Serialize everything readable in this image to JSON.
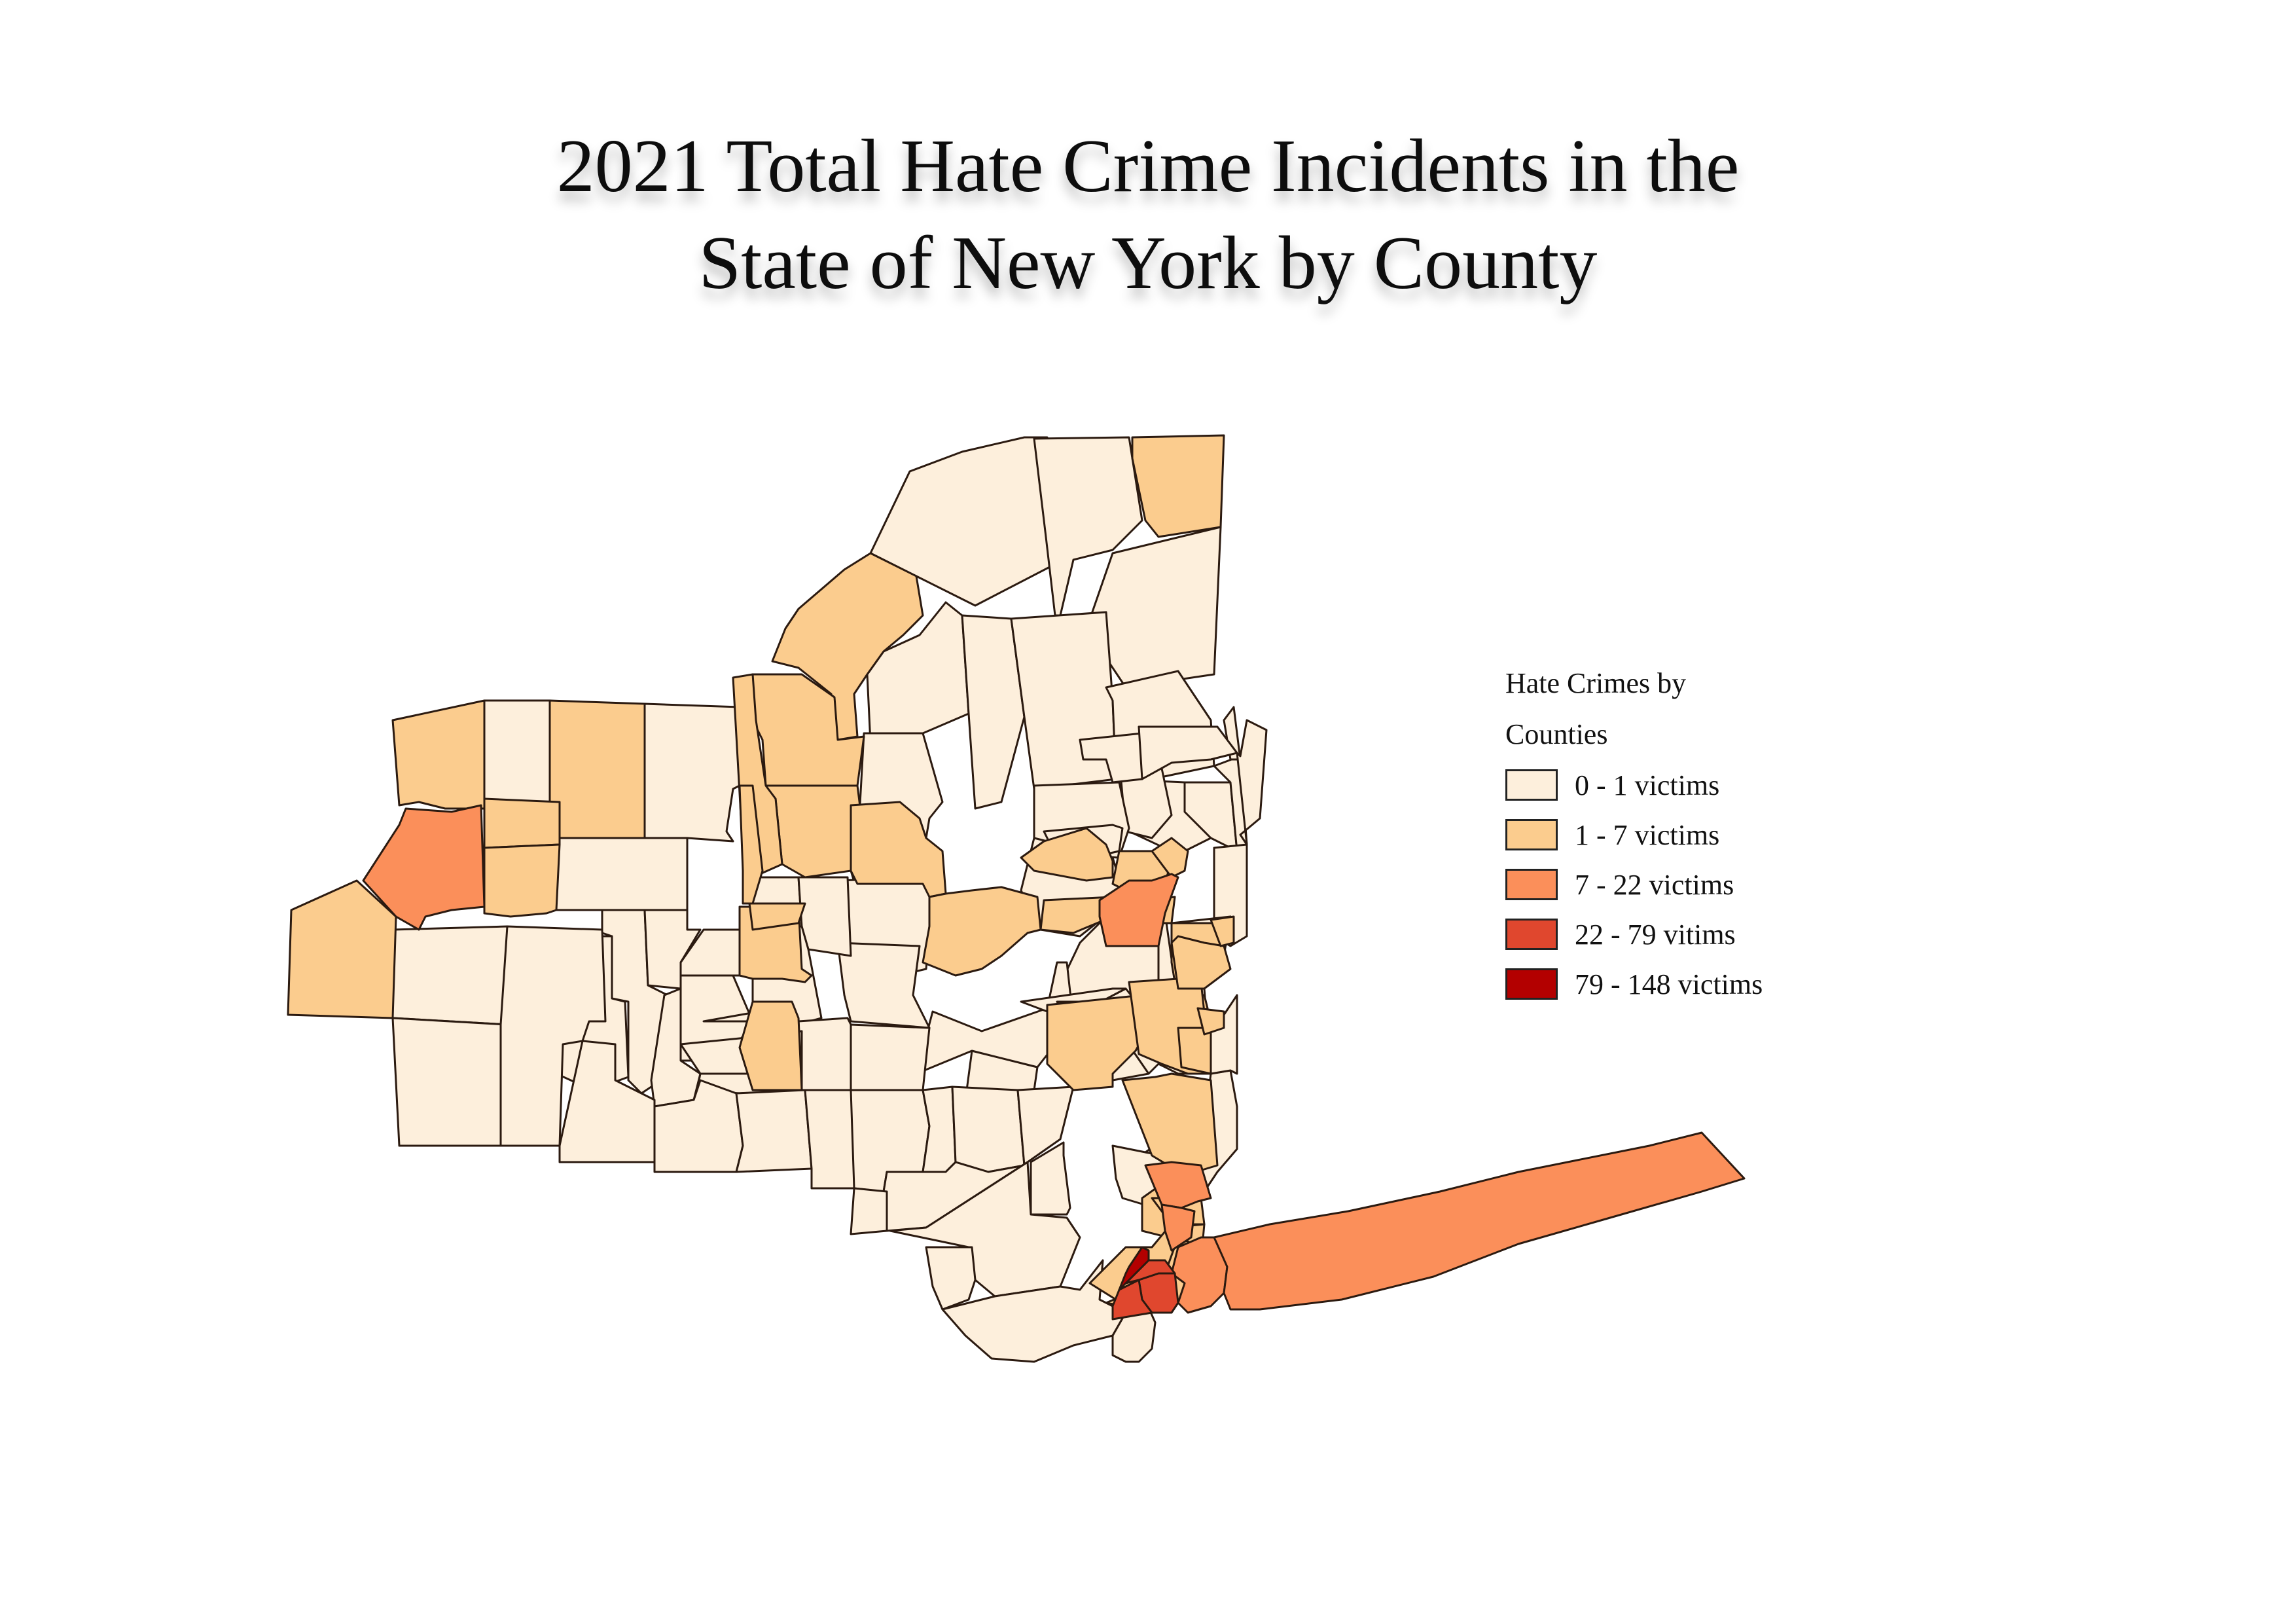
{
  "title": {
    "line1": "2021 Total Hate Crime Incidents in the",
    "line2": "State of New York by County"
  },
  "legend": {
    "title_line1": "Hate Crimes by",
    "title_line2": "Counties",
    "classes": [
      {
        "label": "0 - 1 victims",
        "color": "#fdefdc"
      },
      {
        "label": "1 - 7 victims",
        "color": "#fbcc8e"
      },
      {
        "label": "7 - 22 victims",
        "color": "#fb8f5a"
      },
      {
        "label": "22 - 79 vitims",
        "color": "#e0472e"
      },
      {
        "label": "79 - 148 victims",
        "color": "#b30000"
      }
    ]
  },
  "map": {
    "stroke_color": "#2b1a10"
  }
}
